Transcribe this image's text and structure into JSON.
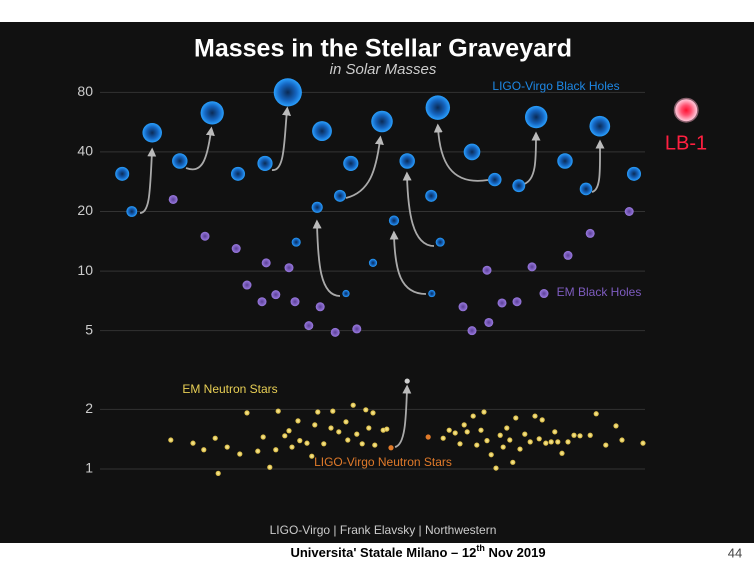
{
  "chart_data": {
    "type": "scatter",
    "title": "Masses in the Stellar Graveyard",
    "subtitle": "in Solar Masses",
    "credit": "LIGO-Virgo | Frank Elavsky | Northwestern",
    "log_scale": true,
    "grid": true,
    "xlim": [
      0,
      100
    ],
    "ylim": [
      0.9,
      110
    ],
    "yticks": [
      1,
      2,
      5,
      10,
      20,
      40,
      80
    ],
    "series": [
      {
        "name": "LIGO-Virgo Black Holes",
        "color": "#1e88e5",
        "x": [
          3.7,
          5.3,
          8.7,
          13.3,
          18.7,
          23,
          27.5,
          31.3,
          37,
          41.8,
          47,
          40,
          36.2,
          32.7,
          45.5,
          49,
          56.7,
          41,
          55.3,
          51.2,
          55.2,
          56.3,
          62,
          65.8,
          69.8,
          72.7,
          77.5,
          81,
          83.3,
          89
        ],
        "values": [
          31,
          20,
          50,
          36,
          63,
          31,
          35,
          80,
          51,
          35,
          57,
          24,
          21,
          14,
          11,
          18,
          14,
          7.7,
          7.7,
          36,
          24,
          67,
          40,
          29,
          27,
          60,
          36,
          26,
          54,
          31
        ]
      },
      {
        "name": "EM Black Holes",
        "color": "#7e5cc0",
        "x": [
          12.2,
          17.5,
          22.7,
          27.7,
          31.5,
          24.5,
          29.3,
          27,
          32.5,
          36.7,
          34.8,
          39.2,
          42.8,
          60.5,
          62,
          64.8,
          64.5,
          67,
          69.5,
          72,
          78,
          81.7,
          88.2,
          74
        ],
        "values": [
          23,
          15,
          13,
          11,
          10.4,
          8.5,
          7.6,
          7,
          7,
          6.6,
          5.3,
          4.9,
          5.1,
          6.6,
          5,
          5.5,
          10.1,
          6.9,
          7,
          10.5,
          12,
          15.5,
          20,
          7.7
        ]
      },
      {
        "name": "EM Neutron Stars",
        "color": "#e8cf55",
        "x": [
          11.8,
          15.5,
          17.3,
          19.2,
          19.7,
          21.2,
          23.3,
          24.5,
          26.3,
          27.2,
          28.3,
          29.3,
          29.7,
          30.8,
          31.5,
          32,
          33,
          33.3,
          34.5,
          35.3,
          35.8,
          36.3,
          37.3,
          38.5,
          38.8,
          39.8,
          41,
          41.3,
          42.2,
          42.8,
          43.7,
          44.3,
          44.8,
          45.5,
          45.8,
          47.2,
          47.8,
          57.2,
          58.2,
          59.2,
          60,
          60.7,
          61.2,
          62.2,
          62.8,
          63.5,
          64,
          64.5,
          65.2,
          66,
          66.7,
          67.2,
          67.8,
          68.3,
          68.8,
          69.3,
          70,
          70.8,
          71.7,
          72.5,
          73.2,
          73.7,
          74.3,
          75.2,
          75.8,
          76.3,
          77,
          78,
          79,
          80,
          81.7,
          82.7,
          84.3,
          86,
          87,
          90.5
        ],
        "values": [
          1.4,
          1.35,
          1.25,
          1.43,
          0.95,
          1.29,
          1.19,
          1.92,
          1.23,
          1.45,
          1.02,
          1.25,
          1.96,
          1.47,
          1.56,
          1.29,
          1.75,
          1.39,
          1.35,
          1.16,
          1.67,
          1.94,
          1.34,
          1.61,
          1.96,
          1.54,
          1.73,
          1.4,
          2.1,
          1.5,
          1.34,
          1.99,
          1.61,
          1.92,
          1.32,
          1.57,
          1.59,
          1.43,
          1.57,
          1.52,
          1.34,
          1.67,
          1.54,
          1.85,
          1.32,
          1.57,
          1.94,
          1.39,
          1.18,
          1.01,
          1.48,
          1.29,
          1.61,
          1.4,
          1.08,
          1.81,
          1.26,
          1.5,
          1.37,
          1.85,
          1.42,
          1.77,
          1.35,
          1.37,
          1.54,
          1.37,
          1.2,
          1.37,
          1.48,
          1.47,
          1.48,
          1.9,
          1.32,
          1.65,
          1.4,
          1.35
        ]
      },
      {
        "name": "LIGO-Virgo Neutron Stars",
        "color": "#e07a2a",
        "colors": [
          "#e07a2a",
          "#e07a2a",
          "#cfcfcf"
        ],
        "x": [
          48.5,
          54.7,
          51.2
        ],
        "values": [
          1.28,
          1.45,
          2.78
        ]
      },
      {
        "name": "LB-1",
        "color": "#ff2040",
        "x": [
          97.7
        ],
        "values": [
          65
        ]
      }
    ]
  },
  "footer": {
    "text": "Universita' Statale Milano – 12",
    "sup": "th",
    "text_end": " Nov 2019",
    "page": "44"
  }
}
